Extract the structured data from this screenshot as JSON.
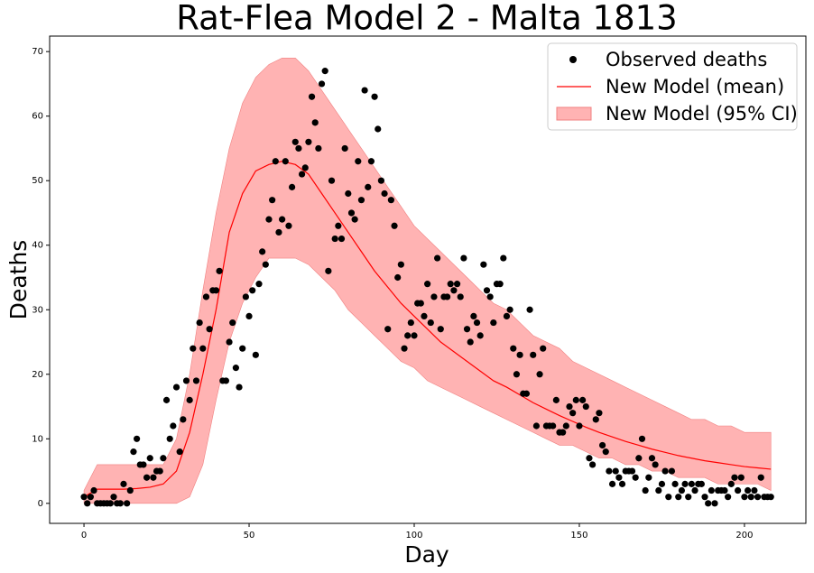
{
  "chart_data": {
    "type": "line",
    "title": "Rat-Flea Model 2 - Malta 1813",
    "x_label": "Day",
    "y_label": "Deaths",
    "xlim": [
      -10.4,
      218.6
    ],
    "ylim": [
      -3.1,
      72.4
    ],
    "xticks": [
      0,
      50,
      100,
      150,
      200
    ],
    "yticks": [
      0,
      10,
      20,
      30,
      40,
      50,
      60,
      70
    ],
    "legend_position": "upper right",
    "series": [
      {
        "name": "Observed deaths",
        "kind": "scatter",
        "color": "#000000",
        "x": [
          0,
          1,
          2,
          3,
          4,
          5,
          6,
          7,
          8,
          9,
          10,
          11,
          12,
          13,
          14,
          15,
          16,
          17,
          18,
          19,
          20,
          21,
          22,
          23,
          24,
          25,
          26,
          27,
          28,
          29,
          30,
          31,
          32,
          33,
          34,
          35,
          36,
          37,
          38,
          39,
          40,
          41,
          42,
          43,
          44,
          45,
          46,
          47,
          48,
          49,
          50,
          51,
          52,
          53,
          54,
          55,
          56,
          57,
          58,
          59,
          60,
          61,
          62,
          63,
          64,
          65,
          66,
          67,
          68,
          69,
          70,
          71,
          72,
          73,
          74,
          75,
          76,
          77,
          78,
          79,
          80,
          81,
          82,
          83,
          84,
          85,
          86,
          87,
          88,
          89,
          90,
          91,
          92,
          93,
          94,
          95,
          96,
          97,
          98,
          99,
          100,
          101,
          102,
          103,
          104,
          105,
          106,
          107,
          108,
          109,
          110,
          111,
          112,
          113,
          114,
          115,
          116,
          117,
          118,
          119,
          120,
          121,
          122,
          123,
          124,
          125,
          126,
          127,
          128,
          129,
          130,
          131,
          132,
          133,
          134,
          135,
          136,
          137,
          138,
          139,
          140,
          141,
          142,
          143,
          144,
          145,
          146,
          147,
          148,
          149,
          150,
          151,
          152,
          153,
          154,
          155,
          156,
          157,
          158,
          159,
          160,
          161,
          162,
          163,
          164,
          165,
          166,
          167,
          168,
          169,
          170,
          171,
          172,
          173,
          174,
          175,
          176,
          177,
          178,
          179,
          180,
          181,
          182,
          183,
          184,
          185,
          186,
          187,
          188,
          189,
          190,
          191,
          192,
          193,
          194,
          195,
          196,
          197,
          198,
          199,
          200,
          201,
          202,
          203,
          204,
          205,
          206,
          207,
          208
        ],
        "values": [
          1,
          0,
          1,
          2,
          0,
          0,
          0,
          0,
          0,
          1,
          0,
          0,
          3,
          0,
          2,
          8,
          10,
          6,
          6,
          4,
          7,
          4,
          5,
          5,
          7,
          16,
          10,
          12,
          18,
          8,
          13,
          19,
          16,
          24,
          19,
          28,
          24,
          32,
          27,
          33,
          33,
          36,
          19,
          19,
          25,
          28,
          21,
          18,
          24,
          32,
          29,
          33,
          23,
          34,
          39,
          37,
          44,
          47,
          53,
          42,
          44,
          53,
          43,
          49,
          56,
          55,
          51,
          52,
          56,
          63,
          59,
          55,
          65,
          67,
          36,
          50,
          41,
          43,
          41,
          55,
          48,
          45,
          44,
          53,
          47,
          64,
          49,
          53,
          63,
          58,
          50,
          48,
          27,
          47,
          43,
          35,
          37,
          24,
          26,
          28,
          26,
          31,
          31,
          29,
          34,
          28,
          32,
          38,
          27,
          32,
          32,
          34,
          33,
          34,
          32,
          38,
          27,
          25,
          29,
          28,
          26,
          37,
          33,
          32,
          28,
          34,
          34,
          38,
          29,
          30,
          24,
          20,
          23,
          17,
          17,
          30,
          23,
          12,
          20,
          24,
          12,
          12,
          12,
          16,
          11,
          11,
          12,
          15,
          14,
          16,
          12,
          16,
          15,
          7,
          6,
          13,
          14,
          9,
          8,
          5,
          3,
          5,
          4,
          3,
          5,
          5,
          5,
          4,
          7,
          10,
          2,
          4,
          7,
          6,
          2,
          3,
          5,
          1,
          5,
          3,
          1,
          2,
          3,
          1,
          3,
          2,
          3,
          3,
          1,
          0,
          2,
          0,
          2,
          2,
          2,
          1,
          3,
          4,
          2,
          4,
          1,
          2,
          1,
          2,
          1,
          4,
          1,
          1,
          1
        ]
      },
      {
        "name": "New Model (mean)",
        "kind": "line",
        "color": "#ff0000",
        "x": [
          0,
          4,
          8,
          12,
          16,
          20,
          24,
          28,
          32,
          36,
          40,
          44,
          48,
          52,
          56,
          60,
          64,
          68,
          72,
          76,
          80,
          84,
          88,
          92,
          96,
          100,
          104,
          108,
          112,
          116,
          120,
          124,
          128,
          132,
          136,
          140,
          144,
          148,
          152,
          156,
          160,
          164,
          168,
          172,
          176,
          180,
          184,
          188,
          192,
          196,
          200,
          204,
          208
        ],
        "values": [
          1,
          2.2,
          2.2,
          2.2,
          2.3,
          2.5,
          3,
          5,
          11,
          20,
          30,
          42,
          48,
          51.5,
          52.5,
          53,
          52.5,
          51,
          48,
          45,
          42,
          39,
          36,
          33.5,
          31,
          29,
          27,
          25,
          23.5,
          22,
          20.5,
          19,
          18,
          16.8,
          15.6,
          14.6,
          13.6,
          12.7,
          11.8,
          11,
          10.3,
          9.6,
          9,
          8.4,
          7.9,
          7.4,
          7,
          6.6,
          6.3,
          6,
          5.7,
          5.5,
          5.3
        ]
      },
      {
        "name": "New Model (95% CI)",
        "kind": "band",
        "color": "#ffb3b3",
        "x": [
          0,
          4,
          8,
          12,
          16,
          20,
          24,
          28,
          32,
          36,
          40,
          44,
          48,
          52,
          56,
          60,
          64,
          68,
          72,
          76,
          80,
          84,
          88,
          92,
          96,
          100,
          104,
          108,
          112,
          116,
          120,
          124,
          128,
          132,
          136,
          140,
          144,
          148,
          152,
          156,
          160,
          164,
          168,
          172,
          176,
          180,
          184,
          188,
          192,
          196,
          200,
          204,
          208
        ],
        "lower": [
          0,
          0,
          0,
          0,
          0,
          0,
          0,
          0,
          1,
          6,
          16,
          25,
          31,
          35,
          38,
          38,
          38,
          37,
          35,
          33,
          30,
          28,
          26,
          24,
          22,
          21,
          19,
          18,
          17,
          16,
          15,
          14,
          13,
          12,
          11,
          10,
          9,
          9,
          8,
          7,
          7,
          6,
          6,
          5,
          5,
          4,
          4,
          4,
          3,
          3,
          3,
          3,
          2
        ],
        "upper": [
          2,
          6,
          6,
          6,
          6,
          6,
          6,
          10,
          20,
          33,
          45,
          55,
          62,
          66,
          68,
          69,
          69,
          67,
          64,
          61,
          58,
          55,
          52,
          49,
          46,
          43,
          41,
          39,
          37,
          35,
          33,
          31,
          30,
          28,
          26,
          25,
          24,
          22,
          21,
          20,
          19,
          18,
          17,
          16,
          15,
          14,
          13,
          13,
          12,
          12,
          11,
          11,
          11
        ]
      }
    ]
  }
}
